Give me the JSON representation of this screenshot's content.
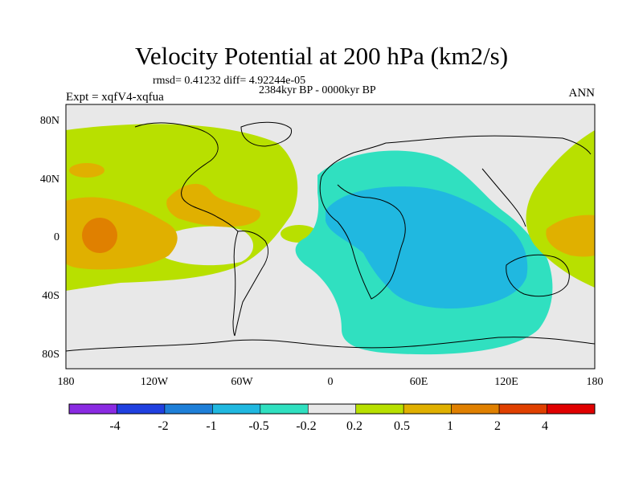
{
  "title": "Velocity Potential at 200 hPa (km2/s)",
  "stats": "rmsd= 0.41232 diff= 4.92244e-05",
  "period": "2384kyr BP - 0000kyr BP",
  "expt": "Expt = xqfV4-xqfua",
  "season": "ANN",
  "lat_labels": [
    "80N",
    "40N",
    "0",
    "40S",
    "80S"
  ],
  "lon_labels": [
    "180",
    "120W",
    "60W",
    "0",
    "60E",
    "120E",
    "180"
  ],
  "colorbar": {
    "colors": [
      "#8a2be2",
      "#2040e0",
      "#1e7fd8",
      "#20b8e0",
      "#30e0c0",
      "#e8e8e8",
      "#b8e000",
      "#e0b000",
      "#e08000",
      "#e04000",
      "#e00000"
    ],
    "labels": [
      "-4",
      "-2",
      "-1",
      "-0.5",
      "-0.2",
      "0.2",
      "0.5",
      "1",
      "2",
      "4"
    ]
  }
}
